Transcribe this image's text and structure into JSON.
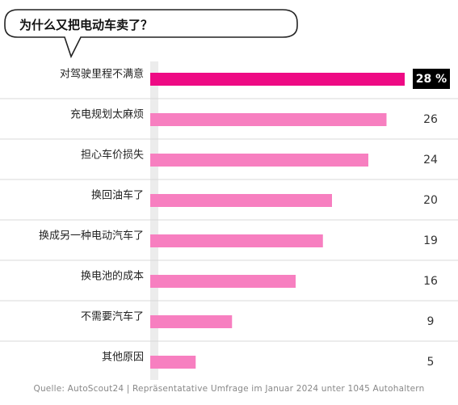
{
  "question": "为什么又把电动车卖了？",
  "source": "Quelle: AutoScout24 | Repräsentatative Umfrage im Januar 2024 unter 1045 Autohaltern",
  "colors": {
    "highlight": "#ee0a84",
    "bar": "#f77fc0",
    "divider": "#d9d9d9",
    "axis": "#ececec",
    "highlight_label_bg": "#000000"
  },
  "chart_data": {
    "type": "bar",
    "orientation": "horizontal",
    "title": "为什么又把电动车卖了？",
    "categories": [
      "对驾驶里程不满意",
      "充电规划太麻烦",
      "担心车价损失",
      "换回油车了",
      "换成另一种电动汽车了",
      "换电池的成本",
      "不需要汽车了",
      "其他原因"
    ],
    "values": [
      28,
      26,
      24,
      20,
      19,
      16,
      9,
      5
    ],
    "value_labels": [
      "28 %",
      "26",
      "24",
      "20",
      "19",
      "16",
      "9",
      "5"
    ],
    "unit": "%",
    "highlight_index": 0,
    "xlim": [
      0,
      28
    ]
  }
}
